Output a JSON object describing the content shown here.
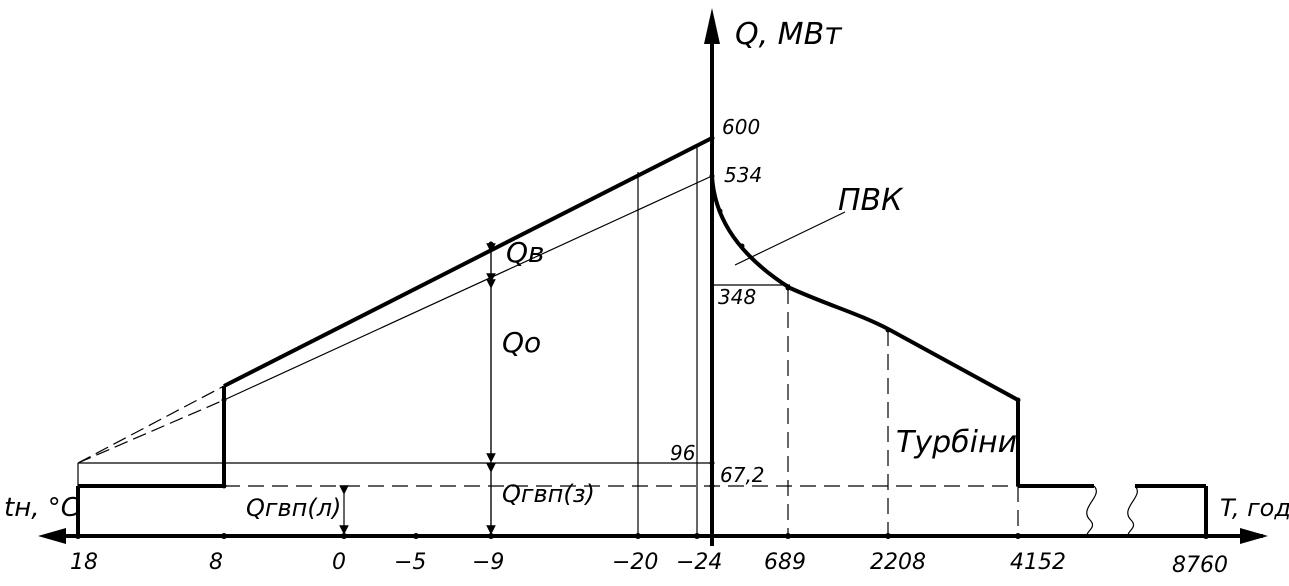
{
  "axis_labels": {
    "y": "Q, МВт",
    "x_left": "tн, °C",
    "x_right": "T, год"
  },
  "curve_labels": {
    "pvk": "ПВК",
    "turbines": "Турбіни",
    "q_v": "Qв",
    "q_o": "Qо",
    "q_gvp_l": "Qгвп(л)",
    "q_gvp_z": "Qгвп(з)"
  },
  "y_values": {
    "v600": "600",
    "v534": "534",
    "v348": "348",
    "v96": "96",
    "v67_2": "67,2"
  },
  "left_ticks": [
    "18",
    "8",
    "0",
    "−5",
    "−9",
    "−20",
    "−24"
  ],
  "right_ticks": [
    "689",
    "2208",
    "4152",
    "8760"
  ],
  "chart_data": {
    "type": "line",
    "left_panel": {
      "x_name": "tн, °C",
      "points_total_heat": [
        [
          8,
          225
        ],
        [
          -24,
          600
        ]
      ],
      "points_heating_and_hot_water": [
        [
          8,
          190
        ],
        [
          -24,
          534
        ]
      ],
      "hot_water_summer": 67.2,
      "hot_water_winter": 67.2,
      "markers": {
        "96": 96,
        "67,2": 67.2
      }
    },
    "right_panel": {
      "x_name": "T, год",
      "duration_curve": [
        [
          0,
          534
        ],
        [
          689,
          348
        ],
        [
          2208,
          290
        ],
        [
          4152,
          225
        ],
        [
          4152,
          67.2
        ],
        [
          8760,
          67.2
        ]
      ],
      "pvk_threshold": 348
    }
  }
}
